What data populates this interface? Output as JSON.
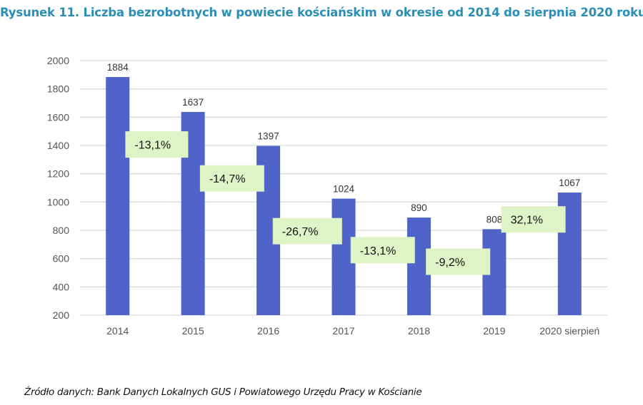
{
  "header": {
    "title": "Rysunek 11. Liczba bezrobotnych w powiecie kościańskim w okresie od 2014 do sierpnia 2020 roku"
  },
  "footer": {
    "source": "Źródło danych: Bank Danych Lokalnych GUS i Powiatowego Urzędu Pracy w Kościanie"
  },
  "colors": {
    "title": "#2b8fb5",
    "bar": "#4f63c8",
    "annotation_bg": "#dff4c6",
    "grid": "#d9d9d9"
  },
  "chart_data": {
    "type": "bar",
    "title": "Rysunek 11. Liczba bezrobotnych w powiecie kościańskim w okresie od 2014 do sierpnia 2020 roku",
    "xlabel": "",
    "ylabel": "",
    "categories": [
      "2014",
      "2015",
      "2016",
      "2017",
      "2018",
      "2019",
      "2020 sierpień"
    ],
    "values": [
      1884,
      1637,
      1397,
      1024,
      890,
      808,
      1067
    ],
    "data_labels": [
      "1884",
      "1637",
      "1397",
      "1024",
      "890",
      "808",
      "1067"
    ],
    "ylim": [
      200,
      2000
    ],
    "yticks": [
      200,
      400,
      600,
      800,
      1000,
      1200,
      1400,
      1600,
      1800,
      2000
    ],
    "grid": true,
    "legend": "none",
    "annotations": [
      {
        "text": "-13,1%",
        "between": [
          "2014",
          "2015"
        ]
      },
      {
        "text": "-14,7%",
        "between": [
          "2015",
          "2016"
        ]
      },
      {
        "text": "-26,7%",
        "between": [
          "2016",
          "2017"
        ]
      },
      {
        "text": "-13,1%",
        "between": [
          "2017",
          "2018"
        ]
      },
      {
        "text": "-9,2%",
        "between": [
          "2018",
          "2019"
        ]
      },
      {
        "text": "32,1%",
        "between": [
          "2019",
          "2020 sierpień"
        ]
      }
    ]
  }
}
